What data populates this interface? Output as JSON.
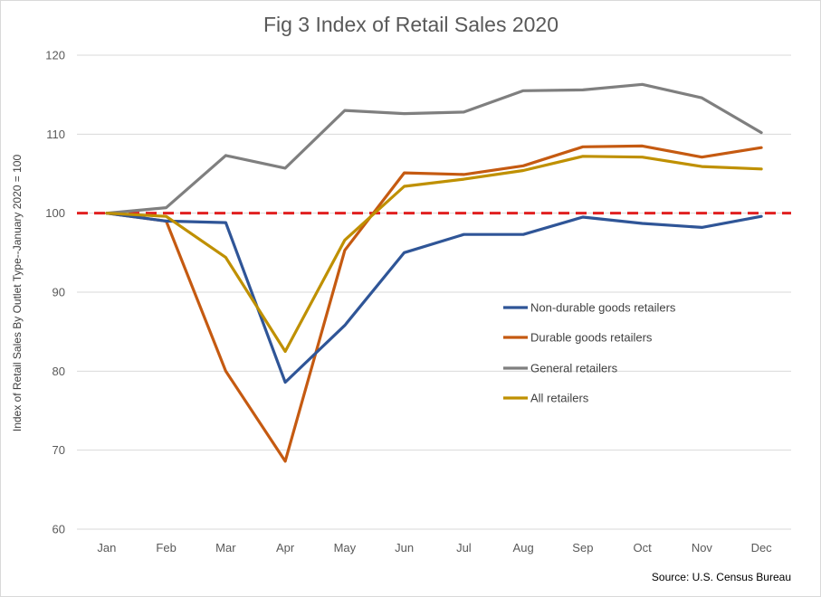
{
  "chart_data": {
    "type": "line",
    "title": "Fig 3 Index of Retail Sales 2020",
    "ylabel": "Index of Retail Sales By Outlet Type--January 2020 = 100",
    "xlabel": "",
    "ylim": [
      60,
      120
    ],
    "yticks": [
      "60",
      "70",
      "80",
      "90",
      "100",
      "110",
      "120"
    ],
    "categories": [
      "Jan",
      "Feb",
      "Mar",
      "Apr",
      "May",
      "Jun",
      "Jul",
      "Aug",
      "Sep",
      "Oct",
      "Nov",
      "Dec"
    ],
    "grid": "horizontal",
    "legend_position": "right",
    "reference_line": {
      "value": 100,
      "color": "#e02020",
      "style": "dashed"
    },
    "series": [
      {
        "name": "Non-durable goods retailers",
        "color": "#2f5597",
        "values": [
          100,
          99.0,
          98.8,
          78.6,
          85.8,
          95.0,
          97.3,
          97.3,
          99.5,
          98.7,
          98.2,
          99.6
        ]
      },
      {
        "name": "Durable goods retailers",
        "color": "#c55a11",
        "values": [
          100,
          99.0,
          80.0,
          68.6,
          95.3,
          105.1,
          104.9,
          106.0,
          108.4,
          108.5,
          107.1,
          108.3
        ]
      },
      {
        "name": "General retailers",
        "color": "#7f7f7f",
        "values": [
          100,
          100.7,
          107.3,
          105.7,
          113.0,
          112.6,
          112.8,
          115.5,
          115.6,
          116.3,
          114.6,
          110.2
        ]
      },
      {
        "name": "All retailers",
        "color": "#bf9000",
        "values": [
          100,
          99.6,
          94.4,
          82.5,
          96.6,
          103.4,
          104.3,
          105.4,
          107.2,
          107.1,
          105.9,
          105.6
        ]
      }
    ],
    "source": "Source: U.S. Census Bureau"
  }
}
